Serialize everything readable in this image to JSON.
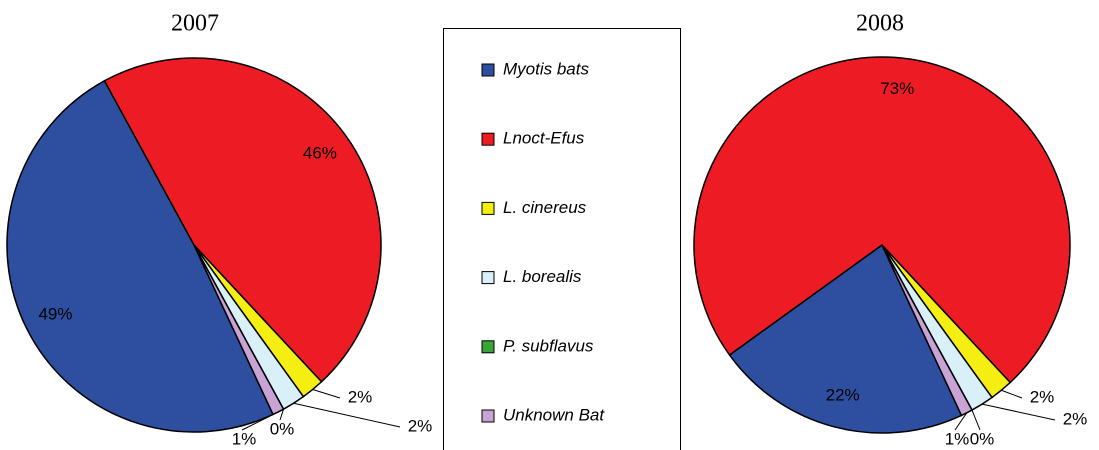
{
  "chart_data": [
    {
      "type": "pie",
      "title": "2007",
      "categories": [
        "Myotis bats",
        "Lnoct-Efus",
        "L. cinereus",
        "L. borealis",
        "P. subflavus",
        "Unknown Bat"
      ],
      "colors": [
        "#2e4fa0",
        "#ed1c24",
        "#f5ee12",
        "#daf0f8",
        "#3aa537",
        "#c8a3d3"
      ],
      "values": [
        49,
        46,
        2,
        2,
        0,
        1
      ],
      "value_labels": [
        "49%",
        "46%",
        "2%",
        "2%",
        "0%",
        "1%"
      ]
    },
    {
      "type": "pie",
      "title": "2008",
      "values": [
        22,
        73,
        2,
        2,
        0,
        1
      ],
      "value_labels": [
        "22%",
        "73%",
        "2%",
        "2%",
        "0%",
        "1%"
      ]
    }
  ]
}
